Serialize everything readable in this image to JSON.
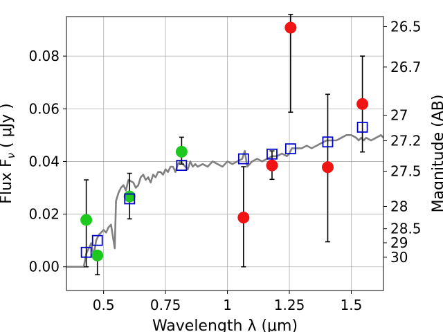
{
  "chart_data": {
    "type": "scatter",
    "xlabel": "Wavelength  λ (μm)",
    "ylabel": "Flux  F",
    "ylabel_sub": "ν",
    "ylabel_unit": "  ( μJy )",
    "y2label": "Magnitude (AB)",
    "xlim": [
      0.35,
      1.63
    ],
    "ylim": [
      -0.009,
      0.095
    ],
    "grid": true,
    "x_ticks": [
      {
        "value": 0.5,
        "label": "0.5"
      },
      {
        "value": 0.75,
        "label": "0.75"
      },
      {
        "value": 1.0,
        "label": "1"
      },
      {
        "value": 1.25,
        "label": "1.25"
      },
      {
        "value": 1.5,
        "label": "1.5"
      }
    ],
    "y_ticks": [
      {
        "value": 0.0,
        "label": "0.00"
      },
      {
        "value": 0.02,
        "label": "0.02"
      },
      {
        "value": 0.04,
        "label": "0.04"
      },
      {
        "value": 0.06,
        "label": "0.06"
      },
      {
        "value": 0.08,
        "label": "0.08"
      }
    ],
    "y2_ticks": [
      {
        "value": 26.5,
        "label": "26.5"
      },
      {
        "value": 26.7,
        "label": "26.7"
      },
      {
        "value": 27,
        "label": "27"
      },
      {
        "value": 27.2,
        "label": "27.2"
      },
      {
        "value": 27.5,
        "label": "27.5"
      },
      {
        "value": 28,
        "label": "28"
      },
      {
        "value": 28.5,
        "label": "28.5"
      },
      {
        "value": 29,
        "label": "29"
      },
      {
        "value": 30,
        "label": "30"
      }
    ],
    "series": [
      {
        "kind": "line",
        "color": "#808080",
        "x": [
          0.35,
          0.4,
          0.42,
          0.43,
          0.44,
          0.45,
          0.46,
          0.47,
          0.48,
          0.49,
          0.5,
          0.51,
          0.52,
          0.53,
          0.54,
          0.545,
          0.55,
          0.56,
          0.57,
          0.58,
          0.59,
          0.6,
          0.62,
          0.63,
          0.64,
          0.65,
          0.66,
          0.67,
          0.68,
          0.69,
          0.7,
          0.71,
          0.72,
          0.73,
          0.74,
          0.75,
          0.76,
          0.77,
          0.78,
          0.79,
          0.8,
          0.81,
          0.82,
          0.83,
          0.84,
          0.85,
          0.86,
          0.87,
          0.88,
          0.9,
          0.92,
          0.94,
          0.96,
          0.98,
          1.0,
          1.02,
          1.04,
          1.06,
          1.07,
          1.08,
          1.1,
          1.12,
          1.14,
          1.16,
          1.18,
          1.2,
          1.22,
          1.24,
          1.25,
          1.26,
          1.28,
          1.3,
          1.32,
          1.34,
          1.36,
          1.38,
          1.4,
          1.42,
          1.44,
          1.46,
          1.48,
          1.5,
          1.52,
          1.53,
          1.54,
          1.55,
          1.56,
          1.58,
          1.6,
          1.62,
          1.63
        ],
        "y": [
          0.0,
          0.0,
          0.0,
          0.005,
          0.007,
          0.009,
          0.004,
          0.01,
          0.012,
          0.013,
          0.014,
          0.013,
          0.015,
          0.016,
          0.01,
          0.007,
          0.025,
          0.028,
          0.03,
          0.031,
          0.029,
          0.033,
          0.032,
          0.03,
          0.031,
          0.034,
          0.035,
          0.033,
          0.034,
          0.032,
          0.035,
          0.034,
          0.036,
          0.036,
          0.035,
          0.037,
          0.036,
          0.038,
          0.038,
          0.036,
          0.039,
          0.04,
          0.039,
          0.038,
          0.037,
          0.04,
          0.038,
          0.039,
          0.038,
          0.039,
          0.038,
          0.04,
          0.039,
          0.038,
          0.04,
          0.039,
          0.04,
          0.041,
          0.044,
          0.038,
          0.04,
          0.041,
          0.04,
          0.041,
          0.042,
          0.042,
          0.043,
          0.042,
          0.043,
          0.045,
          0.045,
          0.045,
          0.046,
          0.045,
          0.046,
          0.047,
          0.048,
          0.048,
          0.048,
          0.049,
          0.05,
          0.05,
          0.049,
          0.048,
          0.049,
          0.048,
          0.049,
          0.048,
          0.049,
          0.05,
          0.049
        ]
      },
      {
        "kind": "points",
        "marker": "circle",
        "color": "#1ec81e",
        "x": [
          0.43,
          0.475,
          0.605,
          0.815
        ],
        "y": [
          0.0178,
          0.0043,
          0.0267,
          0.0437
        ],
        "yerr_low": [
          0.0178,
          0.0073,
          0.0085,
          0.0047
        ],
        "yerr_high": [
          0.0152,
          0.0,
          0.0088,
          0.0055
        ]
      },
      {
        "kind": "points",
        "marker": "circle",
        "color": "#f01414",
        "x": [
          1.065,
          1.18,
          1.255,
          1.405,
          1.545
        ],
        "y": [
          0.0187,
          0.0385,
          0.0908,
          0.0378,
          0.0618
        ],
        "yerr_low": [
          0.0187,
          0.0053,
          0.0321,
          0.0283,
          0.0182
        ],
        "yerr_high": [
          0.0193,
          0.0055,
          0.005,
          0.0277,
          0.0182
        ]
      },
      {
        "kind": "points",
        "marker": "square",
        "color": "#0000cc",
        "x": [
          0.43,
          0.475,
          0.605,
          0.815,
          1.065,
          1.18,
          1.255,
          1.405,
          1.545
        ],
        "y": [
          0.0055,
          0.01,
          0.0258,
          0.0385,
          0.041,
          0.0428,
          0.0448,
          0.0474,
          0.053
        ]
      }
    ]
  }
}
